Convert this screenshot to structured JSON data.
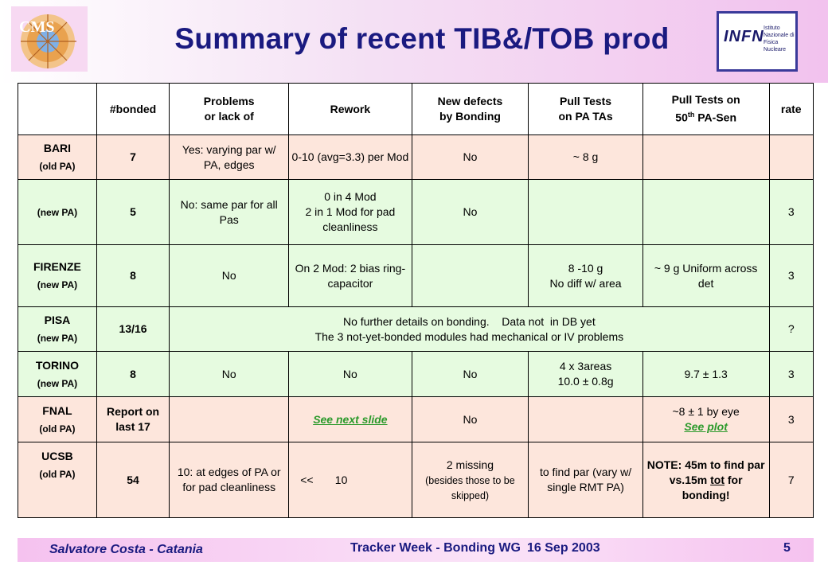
{
  "title": "Summary of recent TIB&/TOB prod",
  "logos": {
    "left_icon": "cms-logo",
    "right_icon": "infn-logo",
    "infn_text": "INFN",
    "infn_sub": "Istituto Nazionale di Fisica Nucleare"
  },
  "table": {
    "headers": {
      "bonded": "#bonded",
      "problems_1": "Problems",
      "problems_2": "or lack of",
      "rework": "Rework",
      "newdef_1": "New defects",
      "newdef_2": "by Bonding",
      "pull_pa_1": "Pull Tests",
      "pull_pa_2": "on PA TAs",
      "pull50_1": "Pull Tests on",
      "pull50_2a": "50",
      "pull50_sup": "th",
      "pull50_2b": " PA-Sen",
      "rate": "rate"
    },
    "bari_old": {
      "site": "BARI",
      "pa": "(old PA)",
      "bonded": "7",
      "problems": "Yes: varying par w/ PA, edges",
      "rework": "0-10 (avg=3.3) per Mod",
      "newdef": "No",
      "pull_pa": "~ 8 g",
      "pull50": "",
      "rate": ""
    },
    "bari_new": {
      "pa": "(new PA)",
      "bonded": "5",
      "problems": "No: same par for all Pas",
      "rework_1": "0 in 4 Mod",
      "rework_2": "2 in 1 Mod for pad cleanliness",
      "newdef": "No",
      "pull_pa": "",
      "pull50": "",
      "rate": "3"
    },
    "firenze": {
      "site": "FIRENZE",
      "pa": "(new PA)",
      "bonded": "8",
      "problems": "No",
      "rework": "On 2 Mod: 2 bias ring-capacitor",
      "newdef": "",
      "pull_pa_1": "8 -10 g",
      "pull_pa_2": "No diff w/ area",
      "pull50": "~ 9 g Uniform across det",
      "rate": "3"
    },
    "pisa": {
      "site": "PISA",
      "pa": "(new PA)",
      "bonded": "13/16",
      "note_1": "No further details on bonding.    Data not  in DB yet",
      "note_2": "The 3 not-yet-bonded modules had mechanical or IV problems",
      "rate": "?"
    },
    "torino": {
      "site": "TORINO",
      "pa": "(new PA)",
      "bonded": "8",
      "problems": "No",
      "rework": "No",
      "newdef": "No",
      "pull_pa_1": "4 x 3areas",
      "pull_pa_2": "10.0 ± 0.8g",
      "pull50": "9.7 ± 1.3",
      "rate": "3"
    },
    "fnal": {
      "site": "FNAL",
      "pa": "(old PA)",
      "bonded": "Report on last 17",
      "problems": "",
      "rework_link": "See next slide",
      "newdef": "No",
      "pull_pa": "",
      "pull50_1": "~8 ± 1 by eye",
      "pull50_link": "See plot",
      "rate": "3"
    },
    "ucsb": {
      "site": "UCSB",
      "pa": "(old PA)",
      "bonded": "54",
      "problems": "10: at edges of PA or for pad cleanliness",
      "rework": "<<       10",
      "newdef_1": "2 missing",
      "newdef_2": "(besides those to be skipped)",
      "pull_pa": "to find par (vary w/ single RMT PA)",
      "pull50_a": "NOTE: 45m to find par vs.15m ",
      "pull50_tot": "tot",
      "pull50_b": " for bonding!",
      "rate": "7"
    }
  },
  "footer": {
    "author": "Salvatore Costa - Catania",
    "event": "Tracker Week - Bonding WG",
    "date": "16 Sep 2003",
    "page": "5"
  },
  "colors": {
    "title": "#1a1a80",
    "peach_row": "#fde6dc",
    "green_row": "#e6fbe0",
    "link": "#2c9a2c",
    "note": "#d40000"
  }
}
